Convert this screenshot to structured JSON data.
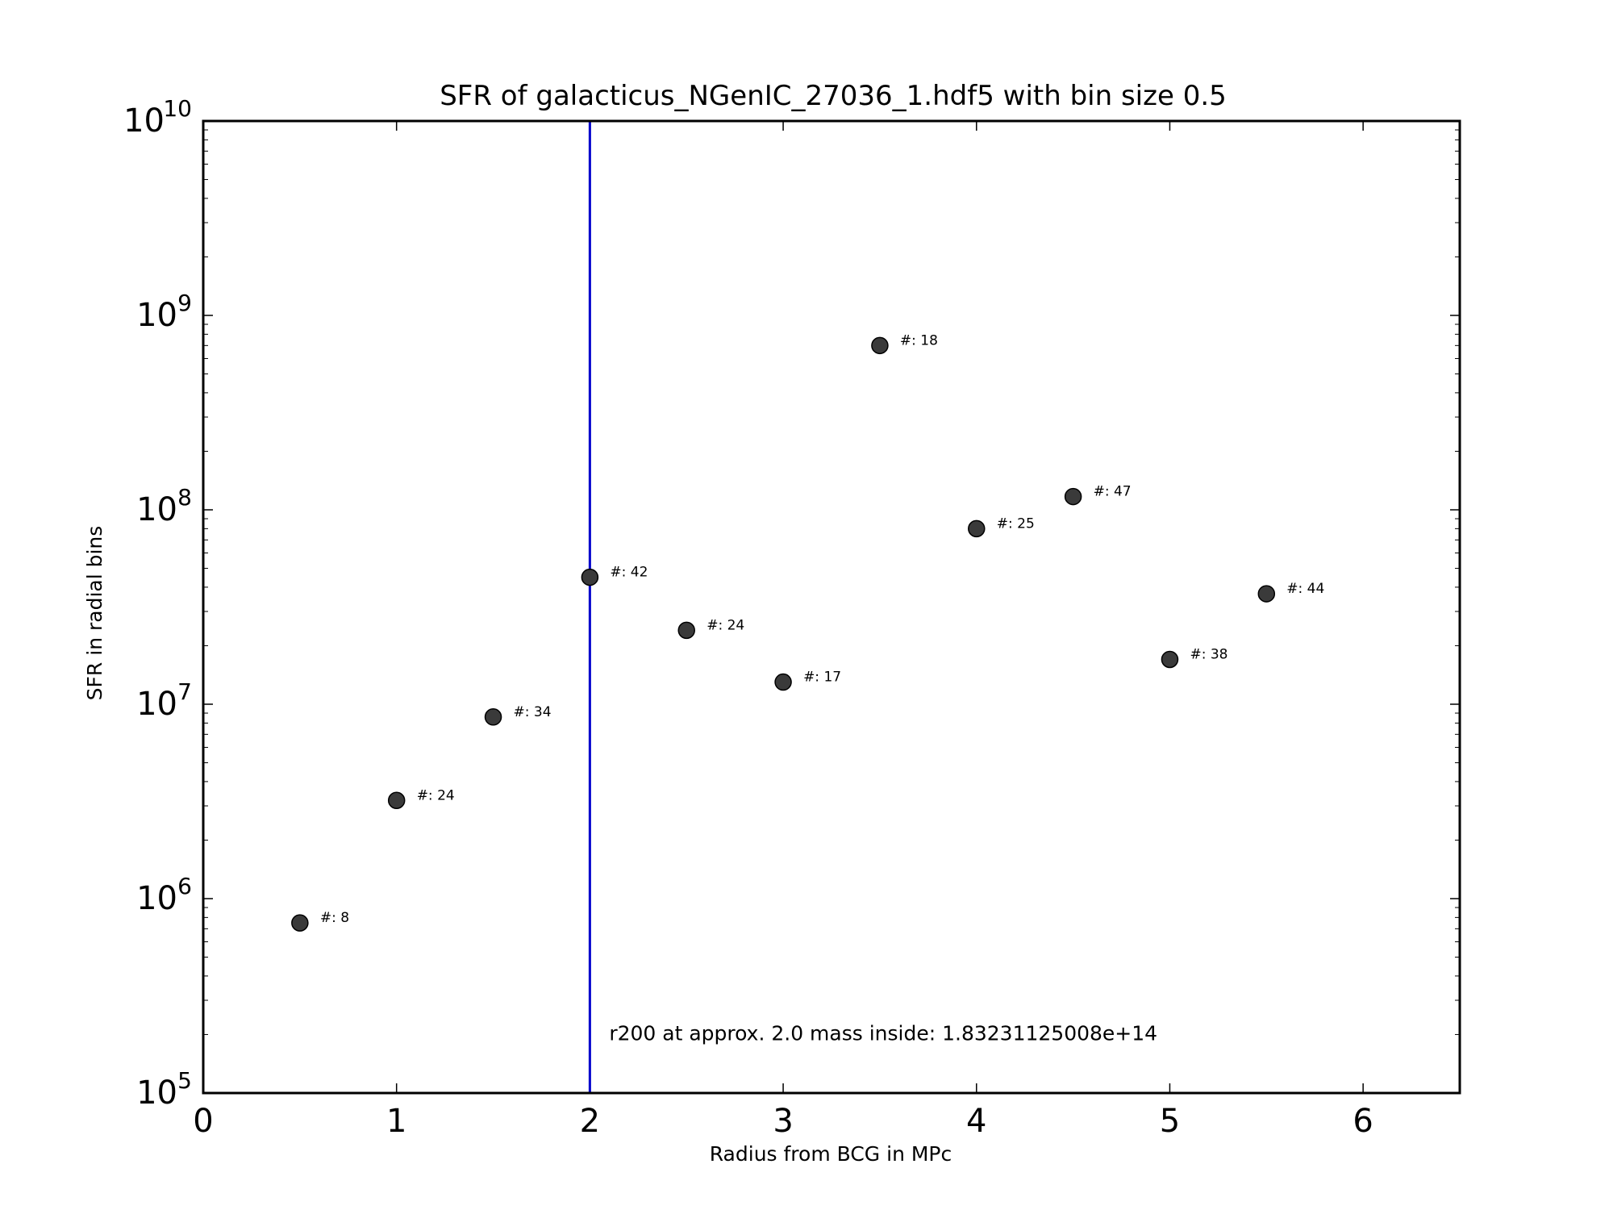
{
  "chart_data": {
    "type": "scatter",
    "title": "SFR of galacticus_NGenIC_27036_1.hdf5 with bin size 0.5",
    "xlabel": "Radius from BCG in MPc",
    "ylabel": "SFR in radial bins",
    "xlim": [
      0,
      6.5
    ],
    "ylim": [
      100000,
      10000000000
    ],
    "yscale": "log",
    "grid": false,
    "x_ticks": [
      0,
      1,
      2,
      3,
      4,
      5,
      6
    ],
    "x_tick_labels": [
      "0",
      "1",
      "2",
      "3",
      "4",
      "5",
      "6"
    ],
    "y_ticks": [
      100000,
      1000000,
      10000000,
      100000000,
      1000000000,
      10000000000
    ],
    "y_tick_labels": [
      {
        "base": "10",
        "exp": "5"
      },
      {
        "base": "10",
        "exp": "6"
      },
      {
        "base": "10",
        "exp": "7"
      },
      {
        "base": "10",
        "exp": "8"
      },
      {
        "base": "10",
        "exp": "9"
      },
      {
        "base": "10",
        "exp": "10"
      }
    ],
    "points": [
      {
        "x": 0.5,
        "y": 750000,
        "label": "#: 8"
      },
      {
        "x": 1.0,
        "y": 3200000,
        "label": "#: 24"
      },
      {
        "x": 1.5,
        "y": 8600000,
        "label": "#: 34"
      },
      {
        "x": 2.0,
        "y": 45000000,
        "label": "#: 42"
      },
      {
        "x": 2.5,
        "y": 24000000,
        "label": "#: 24"
      },
      {
        "x": 3.0,
        "y": 13000000,
        "label": "#: 17"
      },
      {
        "x": 3.5,
        "y": 700000000,
        "label": "#: 18"
      },
      {
        "x": 4.0,
        "y": 80000000,
        "label": "#: 25"
      },
      {
        "x": 4.5,
        "y": 117000000,
        "label": "#: 47"
      },
      {
        "x": 5.0,
        "y": 17000000,
        "label": "#: 38"
      },
      {
        "x": 5.5,
        "y": 37000000,
        "label": "#: 44"
      }
    ],
    "vline": {
      "x": 2.0,
      "color": "#0000cc"
    },
    "annotation": {
      "text": "r200 at approx. 2.0 mass inside: 1.83231125008e+14",
      "x": 2.1,
      "y": 200000
    },
    "marker_color": "#3a3a3a"
  }
}
